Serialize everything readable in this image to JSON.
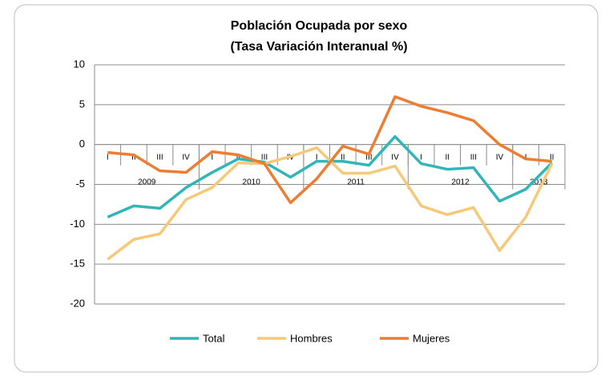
{
  "chart_data": {
    "type": "line",
    "title": "Población Ocupada por sexo",
    "subtitle": "(Tasa Variación Interanual %)",
    "categories": [
      "I",
      "II",
      "III",
      "IV",
      "I",
      "II",
      "III",
      "IV",
      "I",
      "II",
      "III",
      "IV",
      "I",
      "II",
      "III",
      "IV",
      "I",
      "II"
    ],
    "groups": [
      {
        "label": "2009",
        "span": 4
      },
      {
        "label": "2010",
        "span": 4
      },
      {
        "label": "2011",
        "span": 4
      },
      {
        "label": "2012",
        "span": 4
      },
      {
        "label": "2013",
        "span": 2
      }
    ],
    "series": [
      {
        "name": "Total",
        "color": "#31b6b8",
        "values": [
          -9.1,
          -7.7,
          -8.0,
          -5.4,
          -3.5,
          -1.8,
          -2.2,
          -4.1,
          -2.1,
          -2.1,
          -2.6,
          1.0,
          -2.4,
          -3.1,
          -2.9,
          -7.1,
          -5.6,
          -2.3
        ]
      },
      {
        "name": "Hombres",
        "color": "#f5c978",
        "values": [
          -14.4,
          -11.9,
          -11.2,
          -6.9,
          -5.4,
          -2.3,
          -2.4,
          -1.5,
          -0.4,
          -3.6,
          -3.6,
          -2.7,
          -7.7,
          -8.8,
          -7.9,
          -13.3,
          -9.1,
          -2.4
        ]
      },
      {
        "name": "Mujeres",
        "color": "#ec7d31",
        "values": [
          -1.0,
          -1.3,
          -3.3,
          -3.5,
          -0.9,
          -1.3,
          -2.4,
          -7.3,
          -4.3,
          -0.2,
          -1.2,
          6.0,
          4.8,
          4.0,
          3.0,
          0.0,
          -1.8,
          -2.1
        ]
      }
    ],
    "ylim": [
      -20,
      10
    ],
    "yticks": [
      -20,
      -15,
      -10,
      -5,
      0,
      5,
      10
    ],
    "grid": true,
    "legend": "bottom"
  }
}
